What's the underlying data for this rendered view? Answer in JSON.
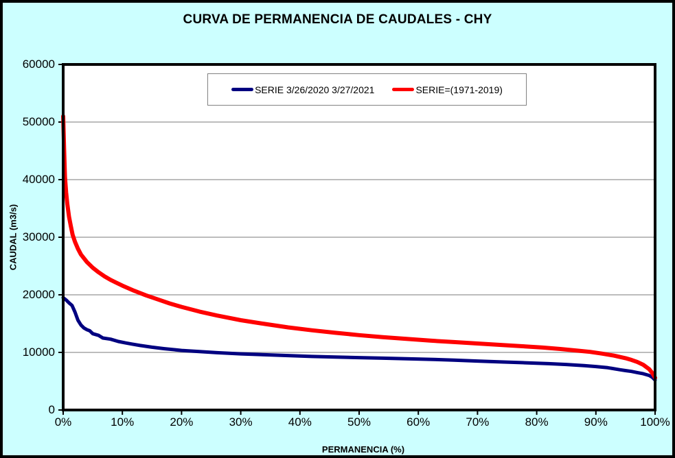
{
  "title": "CURVA DE PERMANENCIA DE CAUDALES - CHY",
  "colors": {
    "background": "#CCFFFF",
    "plot_background": "#FFFFFF",
    "gridline": "#A6A6A6",
    "axis": "#000000",
    "legend_border": "#808080",
    "series_blue": "#000080",
    "series_red": "#FF0000"
  },
  "chart_data": {
    "type": "line",
    "title": "CURVA DE PERMANENCIA DE CAUDALES - CHY",
    "xlabel": "PERMANENCIA (%)",
    "ylabel": "CAUDAL (m3/s)",
    "xlim": [
      0,
      100
    ],
    "ylim": [
      0,
      60000
    ],
    "grid": "horizontal-only",
    "legend_position": "top-center-inside",
    "x_ticks": [
      "0%",
      "10%",
      "20%",
      "30%",
      "40%",
      "50%",
      "60%",
      "70%",
      "80%",
      "90%",
      "100%"
    ],
    "x_tick_values": [
      0,
      10,
      20,
      30,
      40,
      50,
      60,
      70,
      80,
      90,
      100
    ],
    "y_ticks": [
      "0",
      "10000",
      "20000",
      "30000",
      "40000",
      "50000",
      "60000"
    ],
    "y_tick_values": [
      0,
      10000,
      20000,
      30000,
      40000,
      50000,
      60000
    ],
    "series": [
      {
        "name": "SERIE 3/26/2020 3/27/2021",
        "color": "#000080",
        "points": [
          [
            0,
            19500
          ],
          [
            0.5,
            19100
          ],
          [
            1,
            18600
          ],
          [
            1.5,
            18150
          ],
          [
            2,
            17000
          ],
          [
            2.5,
            15600
          ],
          [
            3,
            14750
          ],
          [
            3.5,
            14250
          ],
          [
            4,
            13950
          ],
          [
            4.5,
            13750
          ],
          [
            5,
            13250
          ],
          [
            6,
            12950
          ],
          [
            6.7,
            12500
          ],
          [
            8,
            12300
          ],
          [
            9.3,
            11900
          ],
          [
            10.5,
            11650
          ],
          [
            11.6,
            11450
          ],
          [
            13,
            11200
          ],
          [
            15,
            10900
          ],
          [
            17,
            10650
          ],
          [
            20,
            10350
          ],
          [
            23,
            10150
          ],
          [
            26,
            9950
          ],
          [
            30,
            9750
          ],
          [
            34,
            9600
          ],
          [
            38,
            9450
          ],
          [
            42,
            9300
          ],
          [
            46,
            9200
          ],
          [
            50,
            9100
          ],
          [
            54,
            9000
          ],
          [
            58,
            8900
          ],
          [
            62,
            8800
          ],
          [
            66,
            8650
          ],
          [
            70,
            8500
          ],
          [
            74,
            8350
          ],
          [
            78,
            8200
          ],
          [
            82,
            8050
          ],
          [
            85,
            7900
          ],
          [
            88,
            7700
          ],
          [
            90,
            7550
          ],
          [
            92,
            7350
          ],
          [
            94,
            7000
          ],
          [
            95,
            6850
          ],
          [
            96,
            6700
          ],
          [
            97,
            6500
          ],
          [
            98,
            6300
          ],
          [
            99,
            6000
          ],
          [
            99.5,
            5700
          ],
          [
            100,
            5200
          ]
        ]
      },
      {
        "name": "SERIE=(1971-2019)",
        "color": "#FF0000",
        "points": [
          [
            0,
            51000
          ],
          [
            0.15,
            45500
          ],
          [
            0.3,
            40500
          ],
          [
            0.5,
            37800
          ],
          [
            0.7,
            35800
          ],
          [
            1,
            33500
          ],
          [
            1.3,
            31900
          ],
          [
            1.6,
            30400
          ],
          [
            2,
            29200
          ],
          [
            2.5,
            28000
          ],
          [
            3,
            27000
          ],
          [
            4,
            25700
          ],
          [
            5,
            24700
          ],
          [
            6,
            23900
          ],
          [
            7,
            23200
          ],
          [
            8,
            22600
          ],
          [
            9,
            22100
          ],
          [
            10,
            21600
          ],
          [
            12,
            20700
          ],
          [
            14,
            19900
          ],
          [
            16,
            19200
          ],
          [
            18,
            18500
          ],
          [
            20,
            17900
          ],
          [
            23,
            17100
          ],
          [
            26,
            16400
          ],
          [
            30,
            15600
          ],
          [
            34,
            14950
          ],
          [
            38,
            14350
          ],
          [
            42,
            13850
          ],
          [
            46,
            13400
          ],
          [
            50,
            13000
          ],
          [
            54,
            12650
          ],
          [
            58,
            12350
          ],
          [
            62,
            12050
          ],
          [
            66,
            11800
          ],
          [
            70,
            11550
          ],
          [
            74,
            11300
          ],
          [
            78,
            11050
          ],
          [
            81,
            10850
          ],
          [
            84,
            10600
          ],
          [
            87,
            10300
          ],
          [
            89,
            10100
          ],
          [
            91,
            9800
          ],
          [
            93,
            9450
          ],
          [
            95,
            9000
          ],
          [
            96,
            8700
          ],
          [
            97,
            8350
          ],
          [
            98,
            7850
          ],
          [
            99,
            7100
          ],
          [
            99.5,
            6450
          ],
          [
            100,
            5600
          ]
        ]
      }
    ]
  }
}
